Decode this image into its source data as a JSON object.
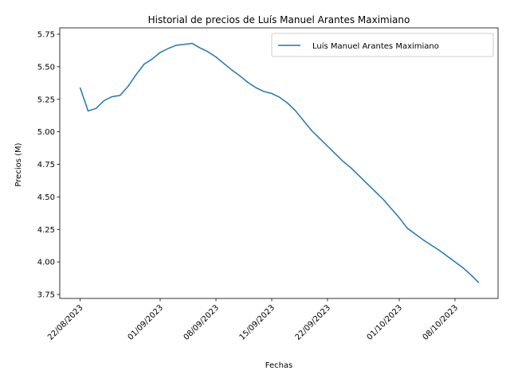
{
  "chart_data": {
    "type": "line",
    "title": "Historial de precios de Luís Manuel Arantes Maximiano",
    "xlabel": "Fechas",
    "ylabel": "Precios (M)",
    "x_ticks": [
      "22/08/2023",
      "01/09/2023",
      "08/09/2023",
      "15/09/2023",
      "22/09/2023",
      "01/10/2023",
      "08/10/2023"
    ],
    "y_ticks": [
      "3.75",
      "4.00",
      "4.25",
      "4.50",
      "4.75",
      "5.00",
      "5.25",
      "5.50",
      "5.75"
    ],
    "ylim": [
      3.75,
      5.75
    ],
    "grid": false,
    "legend_position": "top-right",
    "color": "#1f77b4",
    "series": [
      {
        "name": "Luís Manuel Arantes Maximiano",
        "x": [
          "2023-08-22",
          "2023-08-23",
          "2023-08-24",
          "2023-08-25",
          "2023-08-26",
          "2023-08-27",
          "2023-08-28",
          "2023-08-29",
          "2023-08-30",
          "2023-08-31",
          "2023-09-01",
          "2023-09-02",
          "2023-09-03",
          "2023-09-04",
          "2023-09-05",
          "2023-09-06",
          "2023-09-07",
          "2023-09-08",
          "2023-09-09",
          "2023-09-10",
          "2023-09-11",
          "2023-09-12",
          "2023-09-13",
          "2023-09-14",
          "2023-09-15",
          "2023-09-16",
          "2023-09-17",
          "2023-09-18",
          "2023-09-19",
          "2023-09-20",
          "2023-09-21",
          "2023-09-22",
          "2023-09-23",
          "2023-09-24",
          "2023-09-25",
          "2023-09-26",
          "2023-09-27",
          "2023-09-28",
          "2023-09-29",
          "2023-09-30",
          "2023-10-01",
          "2023-10-02",
          "2023-10-03",
          "2023-10-04",
          "2023-10-05",
          "2023-10-06",
          "2023-10-07",
          "2023-10-08",
          "2023-10-09",
          "2023-10-10",
          "2023-10-11"
        ],
        "values": [
          5.34,
          5.16,
          5.18,
          5.24,
          5.27,
          5.28,
          5.35,
          5.44,
          5.52,
          5.56,
          5.61,
          5.64,
          5.665,
          5.672,
          5.68,
          5.645,
          5.615,
          5.575,
          5.525,
          5.475,
          5.43,
          5.38,
          5.34,
          5.31,
          5.295,
          5.265,
          5.22,
          5.16,
          5.085,
          5.01,
          4.95,
          4.89,
          4.83,
          4.77,
          4.72,
          4.66,
          4.6,
          4.54,
          4.48,
          4.41,
          4.34,
          4.26,
          4.215,
          4.17,
          4.13,
          4.09,
          4.045,
          4.0,
          3.955,
          3.9,
          3.84
        ]
      }
    ]
  }
}
